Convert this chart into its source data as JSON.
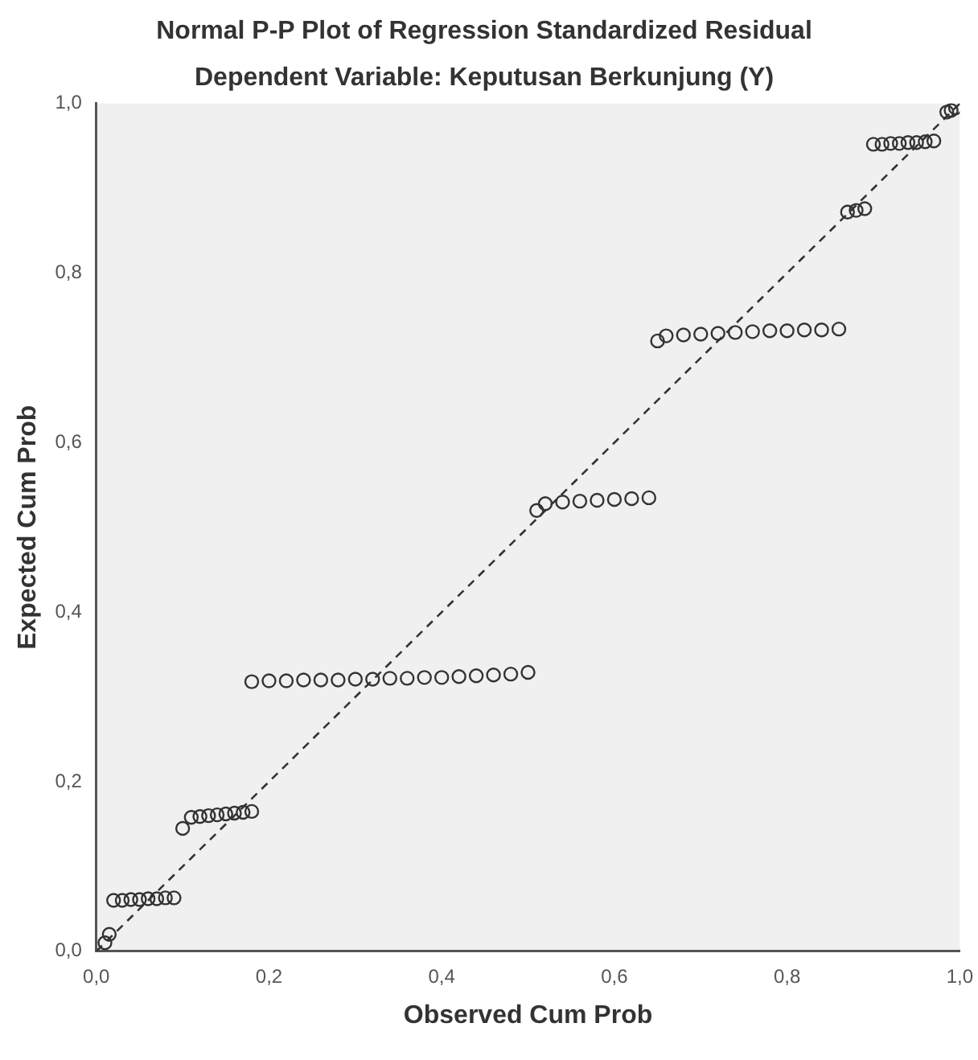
{
  "chart_data": {
    "type": "scatter",
    "title": "Normal P-P Plot of Regression Standardized Residual",
    "subtitle": "Dependent Variable: Keputusan Berkunjung (Y)",
    "xlabel": "Observed Cum Prob",
    "ylabel": "Expected Cum Prob",
    "marker": "circle",
    "xlim": [
      0,
      1
    ],
    "ylim": [
      0,
      1
    ],
    "xticks": [
      {
        "value": 0,
        "label": "0,0"
      },
      {
        "value": 0.2,
        "label": "0,2"
      },
      {
        "value": 0.4,
        "label": "0,4"
      },
      {
        "value": 0.6,
        "label": "0,6"
      },
      {
        "value": 0.8,
        "label": "0,8"
      },
      {
        "value": 1,
        "label": "1,0"
      }
    ],
    "yticks": [
      {
        "value": 0,
        "label": "0,0"
      },
      {
        "value": 0.2,
        "label": "0,2"
      },
      {
        "value": 0.4,
        "label": "0,4"
      },
      {
        "value": 0.6,
        "label": "0,6"
      },
      {
        "value": 0.8,
        "label": "0,8"
      },
      {
        "value": 1,
        "label": "1,0"
      }
    ],
    "series": [
      {
        "type": "line",
        "line_style": "dashed",
        "marker": "none",
        "color": "#333333",
        "x": [
          0,
          1
        ],
        "values": [
          0,
          1
        ]
      },
      {
        "color": "#333333",
        "x": [
          0.01,
          0.015,
          0.02,
          0.03,
          0.04,
          0.05,
          0.06,
          0.07,
          0.08,
          0.09,
          0.1,
          0.11,
          0.12,
          0.13,
          0.14,
          0.15,
          0.16,
          0.17,
          0.18,
          0.18,
          0.2,
          0.22,
          0.24,
          0.26,
          0.28,
          0.3,
          0.32,
          0.34,
          0.36,
          0.38,
          0.4,
          0.42,
          0.44,
          0.46,
          0.48,
          0.5,
          0.51,
          0.52,
          0.54,
          0.56,
          0.58,
          0.6,
          0.62,
          0.64,
          0.65,
          0.66,
          0.68,
          0.7,
          0.72,
          0.74,
          0.76,
          0.78,
          0.8,
          0.82,
          0.84,
          0.86,
          0.87,
          0.88,
          0.89,
          0.9,
          0.91,
          0.92,
          0.93,
          0.94,
          0.95,
          0.96,
          0.97,
          0.985,
          0.99,
          0.995
        ],
        "values": [
          0.01,
          0.02,
          0.06,
          0.06,
          0.061,
          0.061,
          0.062,
          0.062,
          0.063,
          0.063,
          0.145,
          0.158,
          0.159,
          0.16,
          0.161,
          0.162,
          0.163,
          0.164,
          0.165,
          0.318,
          0.319,
          0.319,
          0.32,
          0.32,
          0.32,
          0.321,
          0.321,
          0.322,
          0.322,
          0.323,
          0.323,
          0.324,
          0.325,
          0.326,
          0.327,
          0.329,
          0.52,
          0.528,
          0.53,
          0.531,
          0.532,
          0.533,
          0.534,
          0.535,
          0.72,
          0.726,
          0.727,
          0.728,
          0.729,
          0.73,
          0.731,
          0.732,
          0.732,
          0.733,
          0.733,
          0.734,
          0.872,
          0.874,
          0.876,
          0.952,
          0.952,
          0.953,
          0.953,
          0.954,
          0.954,
          0.955,
          0.956,
          0.99,
          0.992,
          0.995
        ]
      }
    ]
  }
}
